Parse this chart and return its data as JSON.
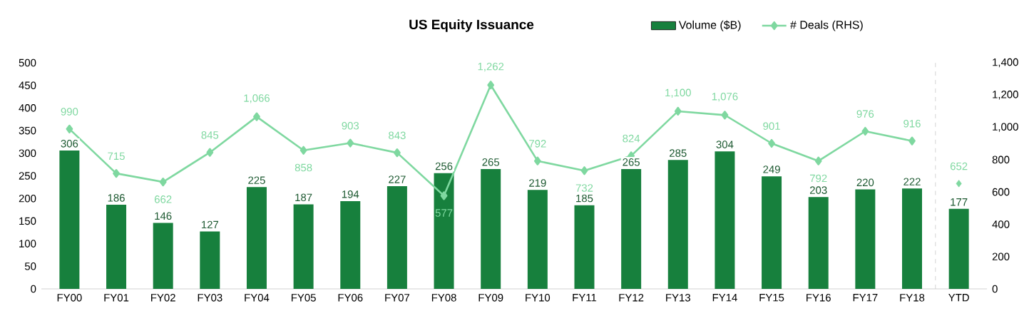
{
  "chart_data": {
    "type": "bar",
    "title": "US Equity Issuance",
    "categories": [
      "FY00",
      "FY01",
      "FY02",
      "FY03",
      "FY04",
      "FY05",
      "FY06",
      "FY07",
      "FY08",
      "FY09",
      "FY10",
      "FY11",
      "FY12",
      "FY13",
      "FY14",
      "FY15",
      "FY16",
      "FY17",
      "FY18",
      "YTD"
    ],
    "series": [
      {
        "name": "Volume ($B)",
        "color": "#17803d",
        "values": [
          306,
          186,
          146,
          127,
          225,
          187,
          194,
          227,
          256,
          265,
          219,
          185,
          265,
          285,
          304,
          249,
          203,
          220,
          222,
          177
        ]
      },
      {
        "name": "# Deals (RHS)",
        "type": "line",
        "axis": "y2",
        "color": "#7fd8a0",
        "marker": "diamond",
        "values": [
          990,
          715,
          662,
          845,
          1066,
          858,
          903,
          843,
          577,
          1262,
          792,
          732,
          824,
          1100,
          1076,
          901,
          792,
          976,
          916,
          null
        ],
        "value_labels": [
          "990",
          "715",
          "662",
          "845",
          "1,066",
          "858",
          "903",
          "843",
          "577",
          "1,262",
          "792",
          "732",
          "824",
          "1,100",
          "1,076",
          "901",
          "792",
          "976",
          "916",
          null
        ]
      },
      {
        "type": "scatter",
        "axis": "y2",
        "color": "#7fd8a0",
        "marker": "diamond",
        "values": [
          null,
          null,
          null,
          null,
          null,
          null,
          null,
          null,
          null,
          null,
          null,
          null,
          null,
          null,
          null,
          null,
          null,
          null,
          null,
          652
        ],
        "value_labels": [
          null,
          null,
          null,
          null,
          null,
          null,
          null,
          null,
          null,
          null,
          null,
          null,
          null,
          null,
          null,
          null,
          null,
          null,
          null,
          "652"
        ]
      }
    ],
    "data_labels": true,
    "ylim": [
      0,
      500
    ],
    "yticks": [
      0,
      50,
      100,
      150,
      200,
      250,
      300,
      350,
      400,
      450,
      500
    ],
    "y2lim": [
      0,
      1400
    ],
    "y2ticks": [
      0,
      200,
      400,
      600,
      800,
      {
        "value": 1000,
        "label": "1,000"
      },
      {
        "value": 1200,
        "label": "1,200"
      },
      {
        "value": 1400,
        "label": "1,400"
      }
    ],
    "legend": "top"
  }
}
